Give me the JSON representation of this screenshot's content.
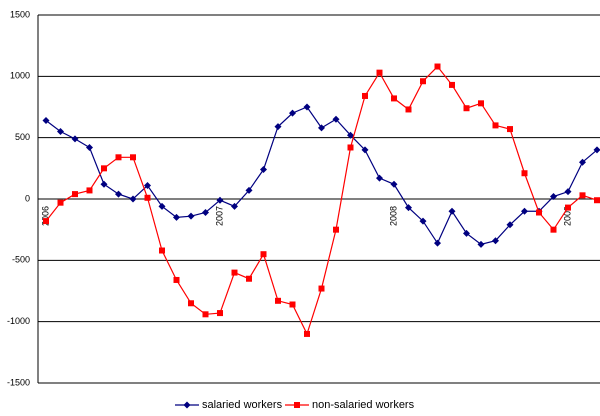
{
  "chart_data": {
    "type": "line",
    "categories": [
      "2006",
      null,
      null,
      null,
      null,
      null,
      null,
      null,
      null,
      null,
      null,
      null,
      "2007",
      null,
      null,
      null,
      null,
      null,
      null,
      null,
      null,
      null,
      null,
      null,
      "2008",
      null,
      null,
      null,
      null,
      null,
      null,
      null,
      null,
      null,
      null,
      null,
      "2009",
      null,
      null
    ],
    "series": [
      {
        "name": "salaried workers",
        "color": "#000080",
        "marker": "diamond",
        "values": [
          640,
          550,
          490,
          420,
          120,
          40,
          0,
          110,
          -60,
          -150,
          -140,
          -110,
          -10,
          -60,
          70,
          240,
          590,
          700,
          750,
          580,
          650,
          520,
          400,
          170,
          120,
          -70,
          -180,
          -360,
          -100,
          -280,
          -370,
          -340,
          -210,
          -100,
          -100,
          20,
          60,
          300,
          400
        ]
      },
      {
        "name": "non-salaried workers",
        "color": "#ff0000",
        "marker": "square",
        "values": [
          -180,
          -30,
          40,
          70,
          250,
          340,
          340,
          10,
          -420,
          -660,
          -850,
          -940,
          -930,
          -600,
          -650,
          -450,
          -830,
          -860,
          -1100,
          -730,
          -250,
          420,
          840,
          1030,
          820,
          730,
          960,
          1080,
          930,
          740,
          780,
          600,
          570,
          210,
          -110,
          -250,
          -70,
          30,
          -10
        ]
      }
    ],
    "ylim": [
      -1500,
      1500
    ],
    "yticks": [
      -1500,
      -1000,
      -500,
      0,
      500,
      1000,
      1500
    ],
    "grid": true,
    "legend": "bottom"
  }
}
